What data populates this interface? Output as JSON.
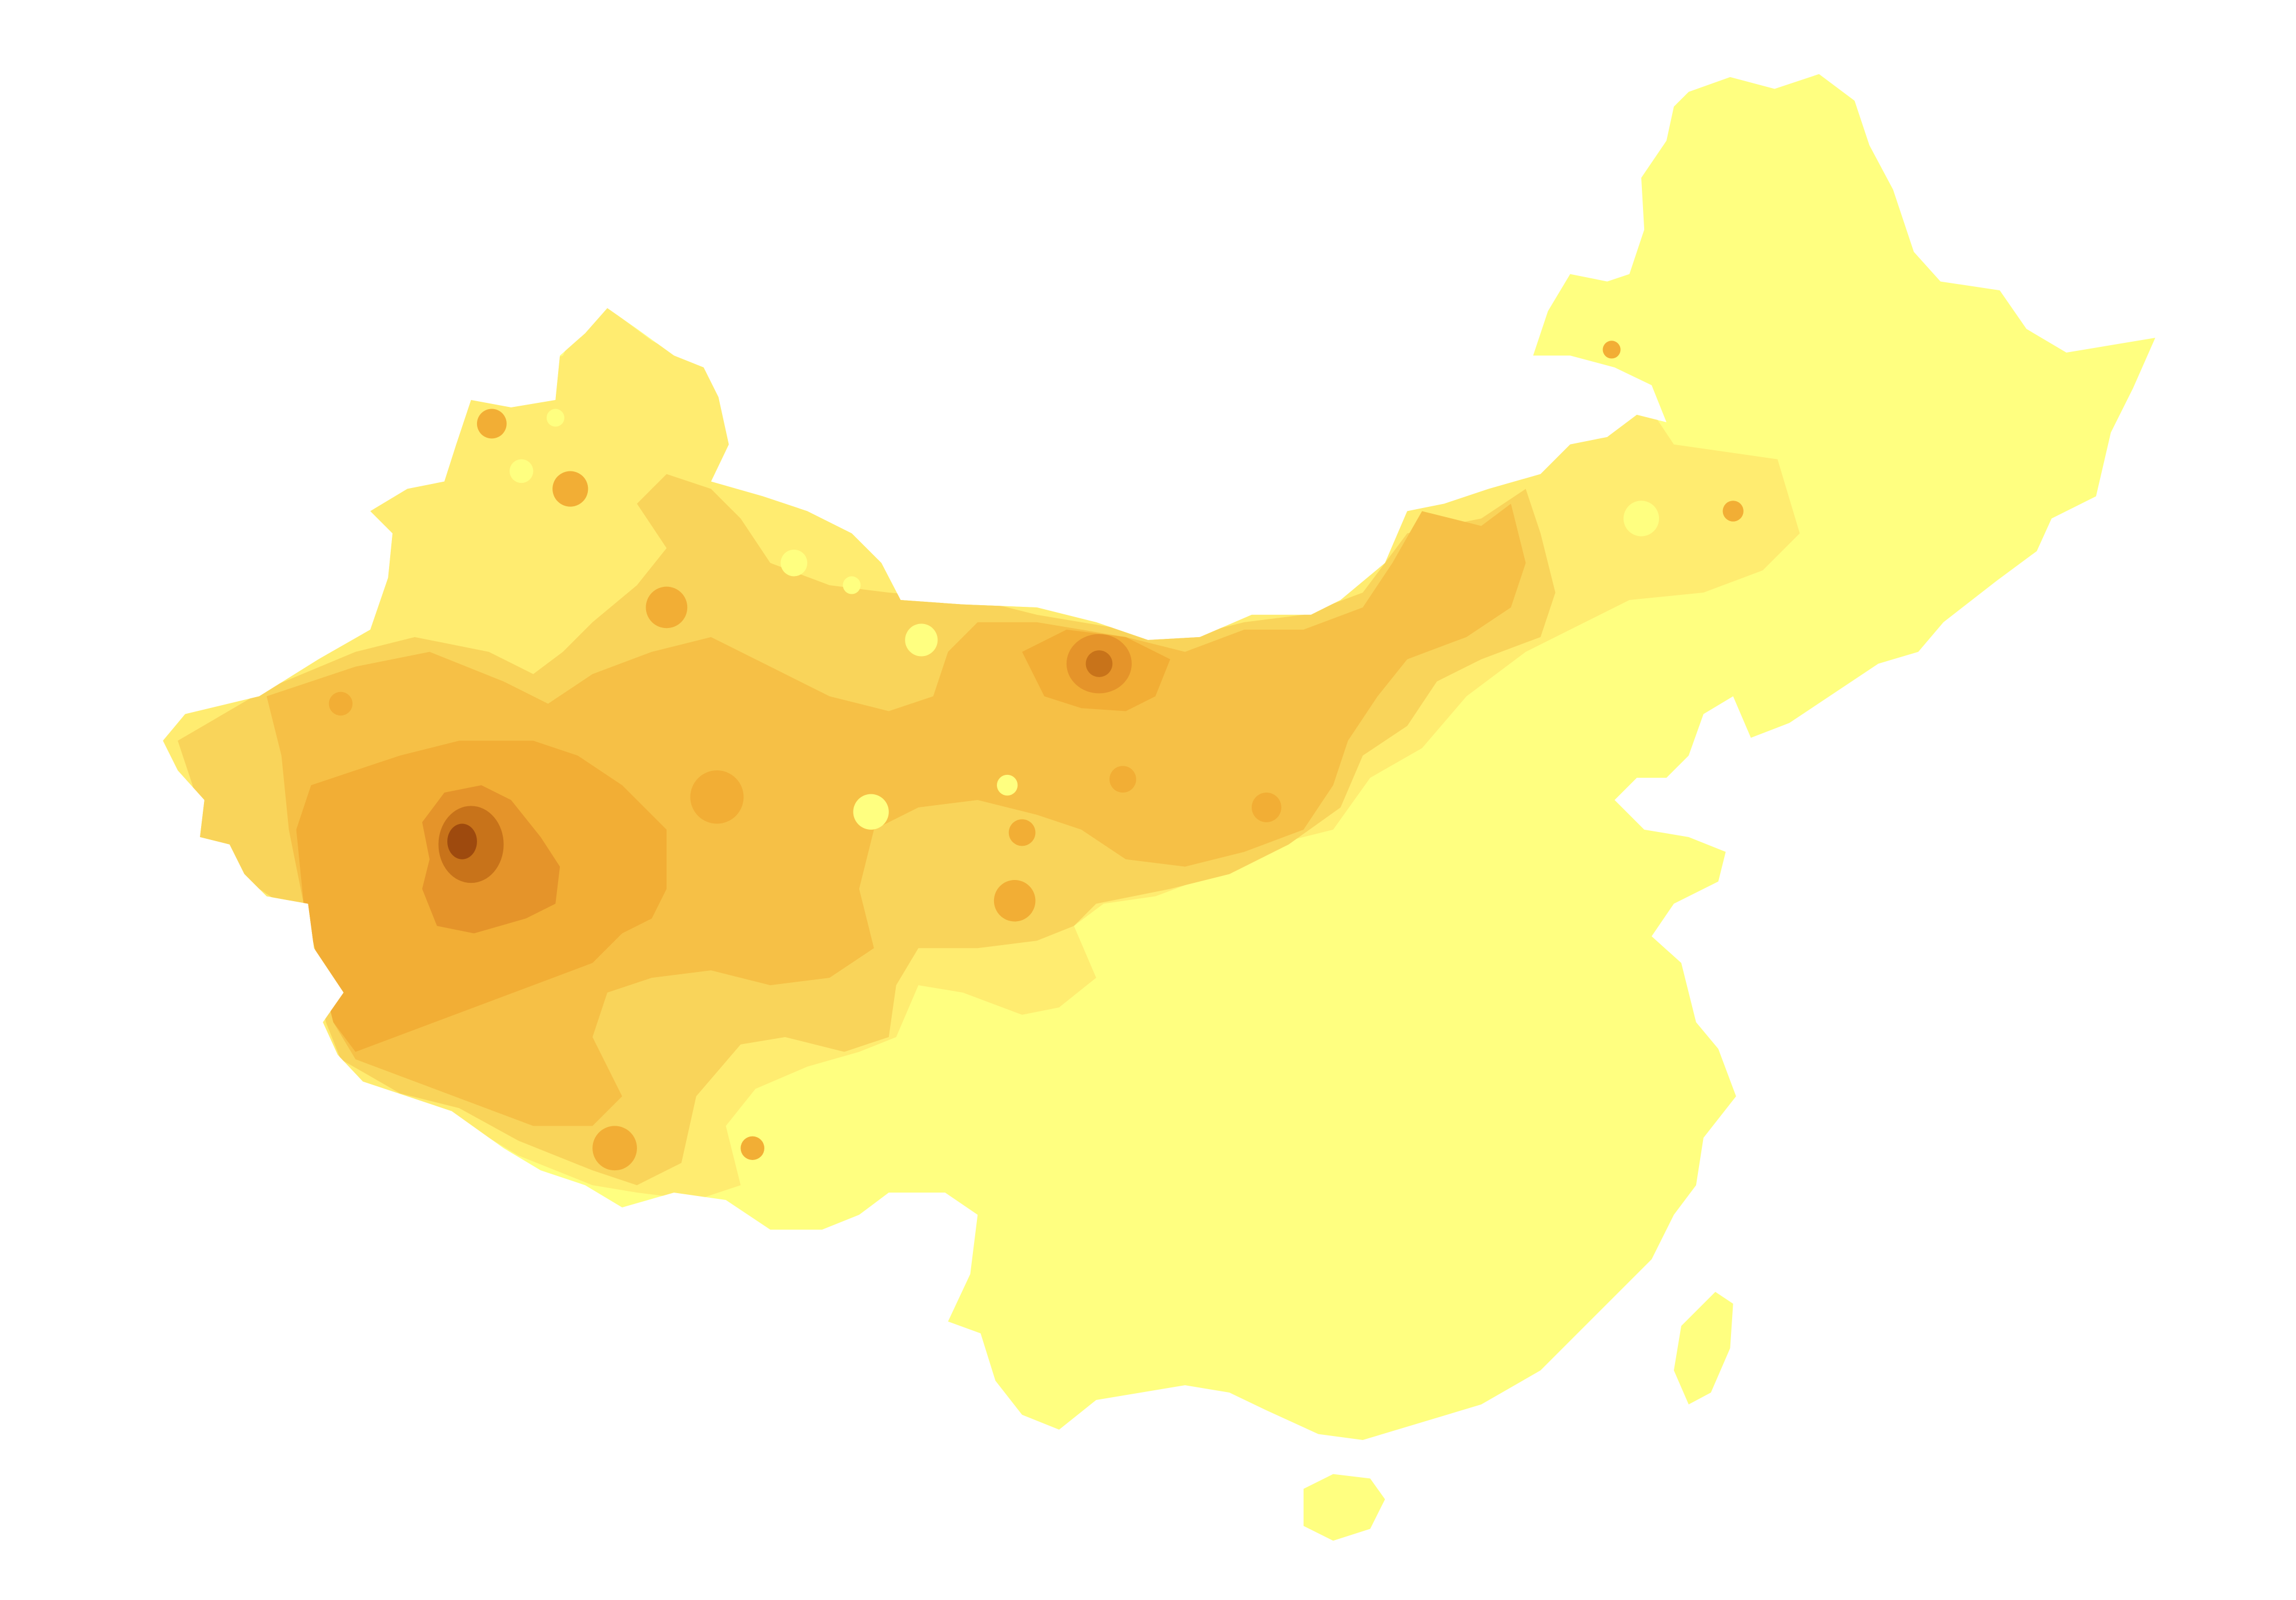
{
  "map": {
    "palette": {
      "level_0": "#FFFF80",
      "level_1": "#FFEC70",
      "level_2": "#F9D45A",
      "level_3": "#F6C046",
      "level_4": "#F2AE35",
      "level_5": "#E5942A",
      "level_6": "#C8731A",
      "level_7": "#9E4A0E",
      "background": "#FFFFFF"
    },
    "contour_levels": 8,
    "legend": null
  }
}
